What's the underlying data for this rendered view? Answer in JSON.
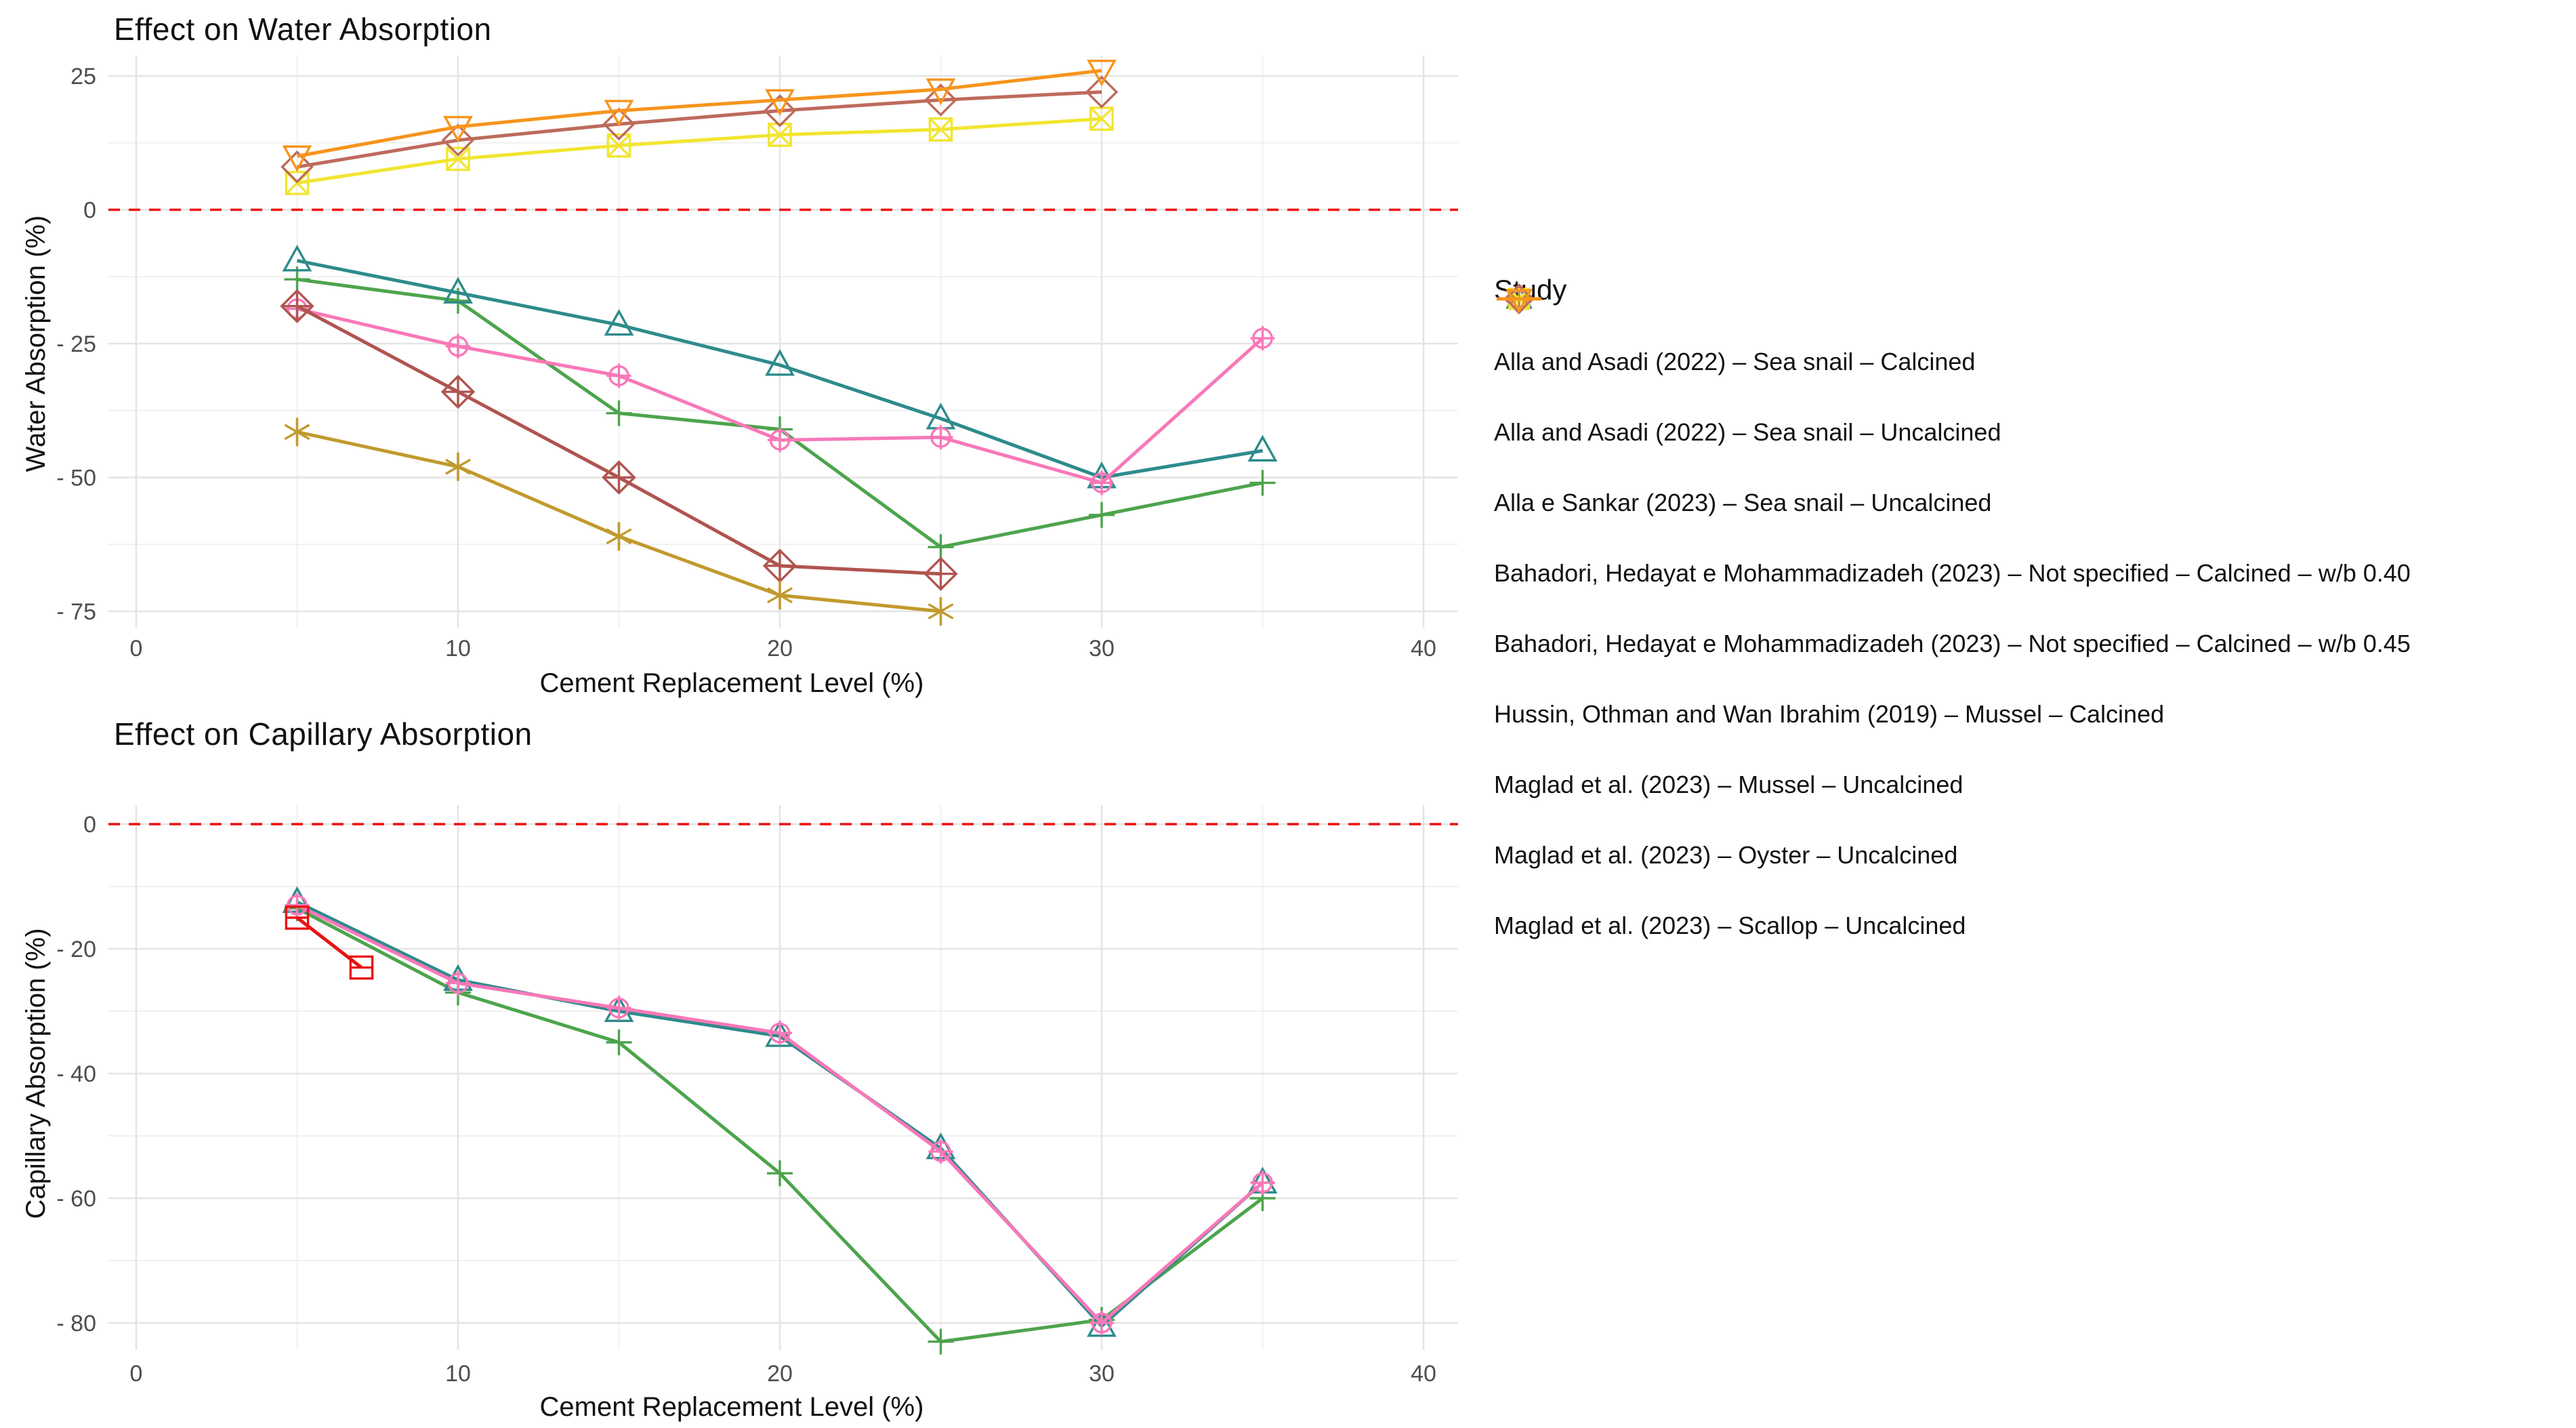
{
  "figure": {
    "background": "#ffffff",
    "reference_line_color": "#ee1111",
    "grid_major_color": "#e4e4e4",
    "grid_minor_color": "#f0f0f0",
    "tick_label_color": "#4d4d4d"
  },
  "legend": {
    "title": "Study",
    "entries": [
      {
        "label": "Alla and Asadi (2022) – Sea snail – Calcined",
        "color": "#4DA44D",
        "marker": "plus"
      },
      {
        "label": "Alla and Asadi (2022) – Sea snail – Uncalcined",
        "color": "#2E8B8B",
        "marker": "triangle-up"
      },
      {
        "label": "Alla e Sankar (2023) – Sea snail – Uncalcined",
        "color": "#F878B8",
        "marker": "circle-plus"
      },
      {
        "label": "Bahadori, Hedayat e Mohammadizadeh (2023) – Not specified – Calcined – w/b 0.40",
        "color": "#B0544F",
        "marker": "diamond-plus"
      },
      {
        "label": "Bahadori, Hedayat e Mohammadizadeh (2023) – Not specified – Calcined – w/b 0.45",
        "color": "#C19A2E",
        "marker": "asterisk"
      },
      {
        "label": "Hussin, Othman and Wan Ibrahim (2019) – Mussel – Calcined",
        "color": "#E81313",
        "marker": "square-plus"
      },
      {
        "label": "Maglad et al. (2023) – Mussel – Uncalcined",
        "color": "#F2E532",
        "marker": "square-x"
      },
      {
        "label": "Maglad et al. (2023) – Oyster – Uncalcined",
        "color": "#BD6B5C",
        "marker": "diamond"
      },
      {
        "label": "Maglad et al. (2023) – Scallop – Uncalcined",
        "color": "#F7941D",
        "marker": "triangle-down"
      }
    ]
  },
  "chart_data": [
    {
      "id": "water",
      "type": "line",
      "title": "Effect on Water Absorption",
      "xlabel": "Cement Replacement Level (%)",
      "ylabel": "Water Absorption (%)",
      "xlim": [
        0,
        40
      ],
      "ylim": [
        -75,
        25
      ],
      "x_ticks": [
        0,
        10,
        20,
        30,
        40
      ],
      "x_tick_labels": [
        "0",
        "10",
        "20",
        "30",
        "40"
      ],
      "x_minor": [
        5,
        15,
        25,
        35
      ],
      "y_ticks": [
        25,
        0,
        -25,
        -50,
        -75
      ],
      "y_tick_labels": [
        "25",
        "0",
        "- 25",
        "- 50",
        "- 75"
      ],
      "y_minor": [
        12.5,
        -12.5,
        -37.5,
        -62.5
      ],
      "grid": true,
      "reference_line_y": 0,
      "legend_position": "right",
      "series": [
        {
          "name": "Alla and Asadi (2022) – Sea snail – Calcined",
          "color": "#4DA44D",
          "marker": "plus",
          "points": [
            [
              5,
              -13
            ],
            [
              10,
              -17
            ],
            [
              15,
              -38
            ],
            [
              20,
              -41
            ],
            [
              25,
              -63
            ],
            [
              30,
              -57
            ],
            [
              35,
              -51
            ]
          ]
        },
        {
          "name": "Alla and Asadi (2022) – Sea snail – Uncalcined",
          "color": "#2E8B8B",
          "marker": "triangle-up",
          "points": [
            [
              5,
              -9.5
            ],
            [
              10,
              -15.5
            ],
            [
              15,
              -21.5
            ],
            [
              20,
              -29
            ],
            [
              25,
              -39
            ],
            [
              30,
              -50
            ],
            [
              35,
              -45
            ]
          ]
        },
        {
          "name": "Alla e Sankar (2023) – Sea snail – Uncalcined",
          "color": "#F878B8",
          "marker": "circle-plus",
          "points": [
            [
              5,
              -18.5
            ],
            [
              10,
              -25.5
            ],
            [
              15,
              -31
            ],
            [
              20,
              -43
            ],
            [
              25,
              -42.5
            ],
            [
              30,
              -51
            ],
            [
              35,
              -24
            ]
          ]
        },
        {
          "name": "Bahadori, Hedayat e Mohammadizadeh (2023) – Not specified – Calcined – w/b 0.40",
          "color": "#B0544F",
          "marker": "diamond-plus",
          "points": [
            [
              5,
              -18
            ],
            [
              10,
              -34
            ],
            [
              15,
              -50
            ],
            [
              20,
              -66.5
            ],
            [
              25,
              -68
            ]
          ]
        },
        {
          "name": "Bahadori, Hedayat e Mohammadizadeh (2023) – Not specified – Calcined – w/b 0.45",
          "color": "#C19A2E",
          "marker": "asterisk",
          "points": [
            [
              5,
              -41.5
            ],
            [
              10,
              -48
            ],
            [
              15,
              -61
            ],
            [
              20,
              -72
            ],
            [
              25,
              -75
            ]
          ]
        },
        {
          "name": "Maglad et al. (2023) – Mussel – Uncalcined",
          "color": "#F2E532",
          "marker": "square-x",
          "points": [
            [
              5,
              5
            ],
            [
              10,
              9.5
            ],
            [
              15,
              12
            ],
            [
              20,
              14
            ],
            [
              25,
              15
            ],
            [
              30,
              17
            ]
          ]
        },
        {
          "name": "Maglad et al. (2023) – Oyster – Uncalcined",
          "color": "#BD6B5C",
          "marker": "diamond",
          "points": [
            [
              5,
              8
            ],
            [
              10,
              13
            ],
            [
              15,
              16
            ],
            [
              20,
              18.5
            ],
            [
              25,
              20.5
            ],
            [
              30,
              22
            ]
          ]
        },
        {
          "name": "Maglad et al. (2023) – Scallop – Uncalcined",
          "color": "#F7941D",
          "marker": "triangle-down",
          "points": [
            [
              5,
              10
            ],
            [
              10,
              15.5
            ],
            [
              15,
              18.5
            ],
            [
              20,
              20.5
            ],
            [
              25,
              22.5
            ],
            [
              30,
              26
            ]
          ]
        }
      ]
    },
    {
      "id": "capillary",
      "type": "line",
      "title": "Effect on Capillary Absorption",
      "xlabel": "Cement Replacement Level (%)",
      "ylabel": "Capillary Absorption (%)",
      "xlim": [
        0,
        40
      ],
      "ylim": [
        -80,
        0
      ],
      "x_ticks": [
        0,
        10,
        20,
        30,
        40
      ],
      "x_tick_labels": [
        "0",
        "10",
        "20",
        "30",
        "40"
      ],
      "x_minor": [
        5,
        15,
        25,
        35
      ],
      "y_ticks": [
        0,
        -20,
        -40,
        -60,
        -80
      ],
      "y_tick_labels": [
        "0",
        "- 20",
        "- 40",
        "- 60",
        "- 80"
      ],
      "y_minor": [
        -10,
        -30,
        -50,
        -70
      ],
      "grid": true,
      "reference_line_y": 0,
      "legend_position": "right",
      "series": [
        {
          "name": "Alla and Asadi (2022) – Sea snail – Calcined",
          "color": "#4DA44D",
          "marker": "plus",
          "points": [
            [
              5,
              -13.5
            ],
            [
              10,
              -27
            ],
            [
              15,
              -35
            ],
            [
              20,
              -56
            ],
            [
              25,
              -83
            ],
            [
              30,
              -79.5
            ],
            [
              35,
              -60
            ]
          ]
        },
        {
          "name": "Alla and Asadi (2022) – Sea snail – Uncalcined",
          "color": "#2E8B8B",
          "marker": "triangle-up",
          "points": [
            [
              5,
              -12.5
            ],
            [
              10,
              -25
            ],
            [
              15,
              -30
            ],
            [
              20,
              -34
            ],
            [
              25,
              -52
            ],
            [
              30,
              -80.5
            ],
            [
              35,
              -57.5
            ]
          ]
        },
        {
          "name": "Alla e Sankar (2023) – Sea snail – Uncalcined",
          "color": "#F878B8",
          "marker": "circle-plus",
          "points": [
            [
              5,
              -13
            ],
            [
              10,
              -25.5
            ],
            [
              15,
              -29.5
            ],
            [
              20,
              -33.5
            ],
            [
              25,
              -52.5
            ],
            [
              30,
              -80
            ],
            [
              35,
              -57.5
            ]
          ]
        },
        {
          "name": "Hussin, Othman and Wan Ibrahim (2019) – Mussel – Calcined",
          "color": "#E81313",
          "marker": "square-plus",
          "points": [
            [
              5,
              -15
            ],
            [
              7,
              -23
            ]
          ]
        }
      ]
    }
  ]
}
